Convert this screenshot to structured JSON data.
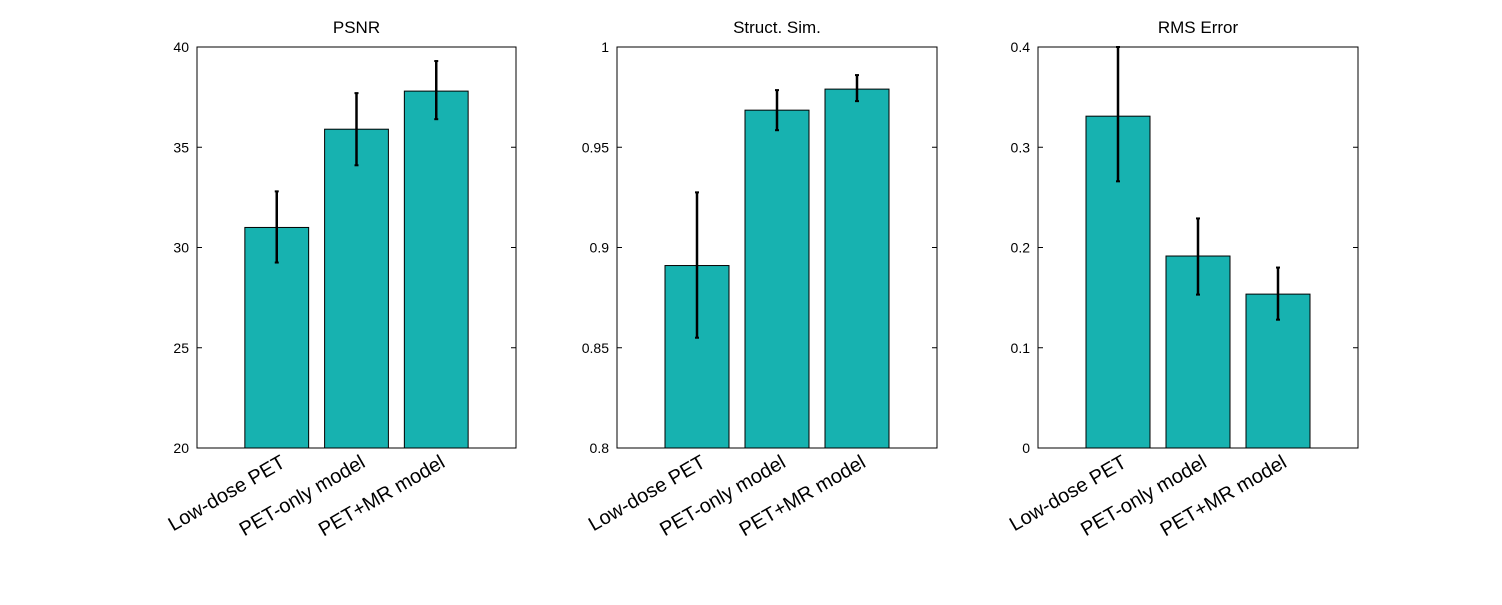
{
  "chart_data": [
    {
      "type": "bar",
      "title": "PSNR",
      "categories": [
        "Low-dose PET",
        "PET-only model",
        "PET+MR model"
      ],
      "values": [
        31.0,
        35.9,
        37.8
      ],
      "error_low": [
        29.25,
        34.1,
        36.4
      ],
      "error_high": [
        32.8,
        37.7,
        39.3
      ],
      "ylim": [
        20,
        40
      ],
      "yticks": [
        20,
        25,
        30,
        35,
        40
      ],
      "ytick_labels": [
        "20",
        "25",
        "30",
        "35",
        "40"
      ],
      "xlabel": "",
      "ylabel": ""
    },
    {
      "type": "bar",
      "title": "Struct. Sim.",
      "categories": [
        "Low-dose PET",
        "PET-only model",
        "PET+MR model"
      ],
      "values": [
        0.891,
        0.9685,
        0.979
      ],
      "error_low": [
        0.855,
        0.9585,
        0.973
      ],
      "error_high": [
        0.9275,
        0.9785,
        0.986
      ],
      "ylim": [
        0.8,
        1.0
      ],
      "yticks": [
        0.8,
        0.85,
        0.9,
        0.95,
        1.0
      ],
      "ytick_labels": [
        "0.8",
        "0.85",
        "0.9",
        "0.95",
        "1"
      ],
      "xlabel": "",
      "ylabel": ""
    },
    {
      "type": "bar",
      "title": "RMS Error",
      "categories": [
        "Low-dose PET",
        "PET-only model",
        "PET+MR model"
      ],
      "values": [
        0.331,
        0.1915,
        0.1535
      ],
      "error_low": [
        0.266,
        0.153,
        0.128
      ],
      "error_high": [
        0.4,
        0.229,
        0.18
      ],
      "ylim": [
        0,
        0.4
      ],
      "yticks": [
        0,
        0.1,
        0.2,
        0.3,
        0.4
      ],
      "ytick_labels": [
        "0",
        "0.1",
        "0.2",
        "0.3",
        "0.4"
      ],
      "xlabel": "",
      "ylabel": ""
    }
  ],
  "colors": {
    "bar": "#17b2b0",
    "edge": "#000000"
  }
}
